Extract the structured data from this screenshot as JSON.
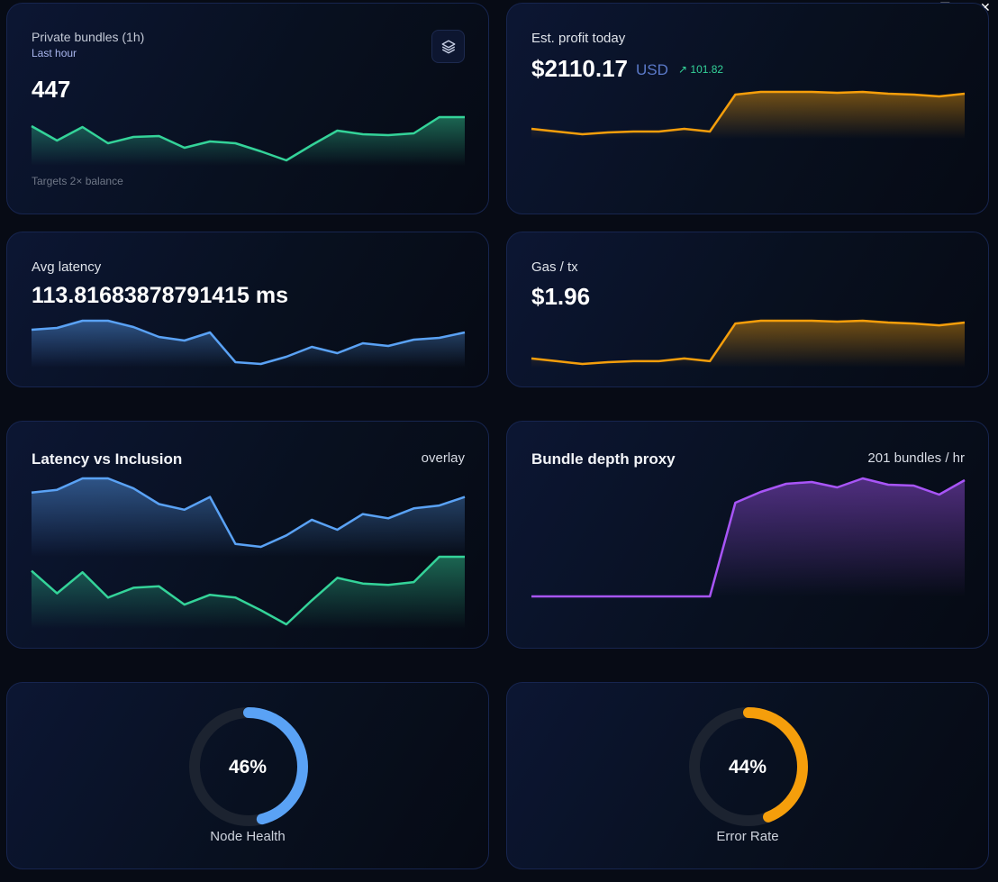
{
  "window_controls": {
    "minimize": "—",
    "maximize": "☐",
    "close": "✕"
  },
  "cards": {
    "bundles": {
      "title": "Private bundles (1h)",
      "subtitle": "Last hour",
      "value": "447",
      "footer": "Targets 2× balance",
      "icon": "layers-icon",
      "color": "#34d399",
      "series": [
        61,
        45,
        60,
        42,
        49,
        50,
        37,
        44,
        42,
        33,
        23,
        40,
        56,
        52,
        51,
        53,
        71,
        71
      ]
    },
    "profit": {
      "title": "Est. profit today",
      "value": "$2110.17",
      "unit": "USD",
      "delta": "101.82",
      "delta_icon": "trending-up-icon",
      "color": "#f59e0b",
      "series": [
        18,
        15,
        12,
        14,
        15,
        15,
        18,
        15,
        56,
        59,
        59,
        59,
        58,
        59,
        57,
        56,
        54,
        57
      ]
    },
    "latency": {
      "title": "Avg latency",
      "value": "113.81683878791415 ms",
      "color": "#5aa2f5",
      "series": [
        55,
        57,
        65,
        65,
        58,
        47,
        43,
        52,
        19,
        17,
        25,
        36,
        29,
        40,
        37,
        44,
        46,
        52
      ]
    },
    "gas": {
      "title": "Gas / tx",
      "value": "$1.96",
      "color": "#f59e0b",
      "series": [
        18,
        15,
        12,
        14,
        15,
        15,
        18,
        15,
        56,
        59,
        59,
        59,
        58,
        59,
        57,
        56,
        54,
        57
      ]
    },
    "overlay": {
      "title": "Latency vs Inclusion",
      "badge": "overlay"
    },
    "depth": {
      "title": "Bundle depth proxy",
      "badge": "201 bundles / hr",
      "color": "#a855f7",
      "series": [
        19,
        19,
        19,
        19,
        19,
        19,
        19,
        19,
        123,
        135,
        144,
        146,
        140,
        150,
        143,
        142,
        132,
        148
      ]
    },
    "health": {
      "label": "Node Health",
      "value": "46%",
      "percent": 46,
      "color": "#5aa2f5"
    },
    "errors": {
      "label": "Error Rate",
      "value": "44%",
      "percent": 44,
      "color": "#f59e0b"
    }
  }
}
